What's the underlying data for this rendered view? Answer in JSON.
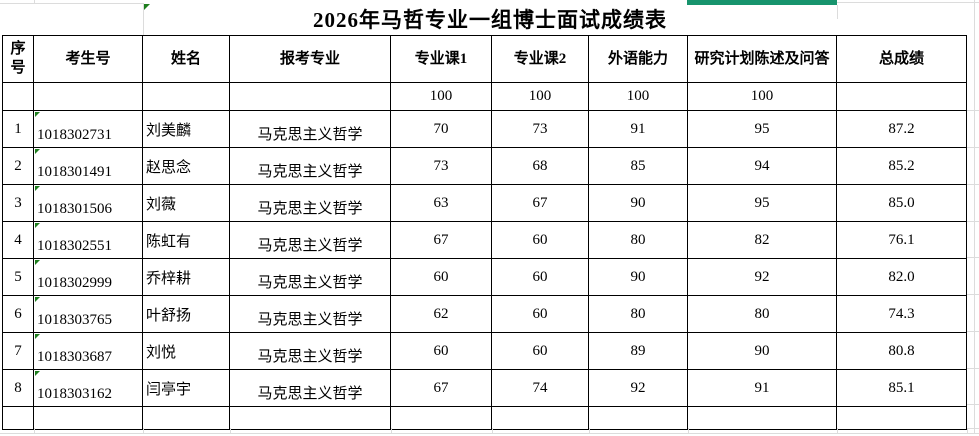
{
  "title": "2026年马哲专业一组博士面试成绩表",
  "table": {
    "columns": [
      "序号",
      "考生号",
      "姓名",
      "报考专业",
      "专业课1",
      "专业课2",
      "外语能力",
      "研究计划陈述及问答",
      "总成绩"
    ],
    "sub_header": [
      "",
      "",
      "",
      "",
      "100",
      "100",
      "100",
      "100",
      ""
    ],
    "rows": [
      [
        "1",
        "1018302731",
        "刘美麟",
        "马克思主义哲学",
        "70",
        "73",
        "91",
        "95",
        "87.2"
      ],
      [
        "2",
        "1018301491",
        "赵思念",
        "马克思主义哲学",
        "73",
        "68",
        "85",
        "94",
        "85.2"
      ],
      [
        "3",
        "1018301506",
        "刘薇",
        "马克思主义哲学",
        "63",
        "67",
        "90",
        "95",
        "85.0"
      ],
      [
        "4",
        "1018302551",
        "陈虹有",
        "马克思主义哲学",
        "67",
        "60",
        "80",
        "82",
        "76.1"
      ],
      [
        "5",
        "1018302999",
        "乔梓耕",
        "马克思主义哲学",
        "60",
        "60",
        "90",
        "92",
        "82.0"
      ],
      [
        "6",
        "1018303765",
        "叶舒扬",
        "马克思主义哲学",
        "62",
        "60",
        "80",
        "80",
        "74.3"
      ],
      [
        "7",
        "1018303687",
        "刘悦",
        "马克思主义哲学",
        "60",
        "60",
        "89",
        "90",
        "80.8"
      ],
      [
        "8",
        "1018303162",
        "闫亭宇",
        "马克思主义哲学",
        "67",
        "74",
        "92",
        "91",
        "85.1"
      ]
    ]
  },
  "icons": {
    "text_flag": "green-corner-triangle"
  },
  "colors": {
    "selection_green": "#17946d",
    "flag_green": "#1e7e1e",
    "table_border": "#000000",
    "gridline": "#dcdcdc",
    "background": "#ffffff"
  }
}
